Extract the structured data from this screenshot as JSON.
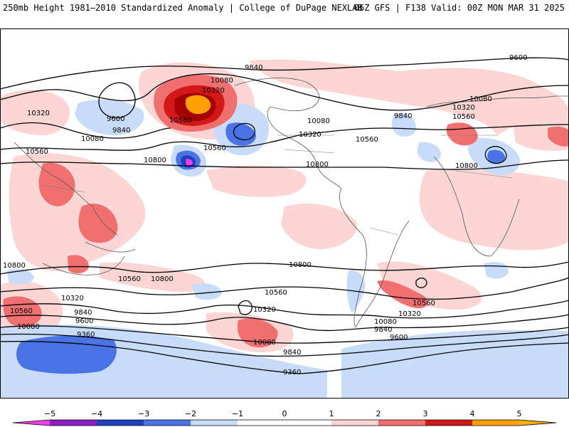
{
  "header": {
    "title_left": "250mb Height 1981–2010 Standardized Anomaly | College of DuPage NEXLAB",
    "title_right": "06Z GFS | F138 Valid: 00Z MON MAR 31 2025"
  },
  "colors": {
    "neg5": "#ee3ee6",
    "neg4": "#8a1fc4",
    "neg3": "#1e3fbf",
    "neg2": "#4a74e6",
    "neg1": "#c8dcfa",
    "pos1": "#fcd5d5",
    "pos2": "#f07070",
    "pos3": "#d41818",
    "pos4": "#a50000",
    "pos5": "#ff9f00"
  },
  "contour_labels": [
    {
      "text": "9840"
    },
    {
      "text": "9600"
    },
    {
      "text": "10080"
    },
    {
      "text": "10320"
    },
    {
      "text": "10320"
    },
    {
      "text": "9600"
    },
    {
      "text": "9840"
    },
    {
      "text": "10080"
    },
    {
      "text": "10560"
    },
    {
      "text": "10800"
    },
    {
      "text": "10560"
    },
    {
      "text": "10560"
    },
    {
      "text": "10320"
    },
    {
      "text": "10080"
    },
    {
      "text": "10560"
    },
    {
      "text": "9840"
    },
    {
      "text": "10080"
    },
    {
      "text": "10320"
    },
    {
      "text": "10560"
    },
    {
      "text": "10800"
    },
    {
      "text": "10800"
    },
    {
      "text": "10560"
    },
    {
      "text": "10800"
    },
    {
      "text": "10800"
    },
    {
      "text": "10320"
    },
    {
      "text": "10560"
    },
    {
      "text": "10080"
    },
    {
      "text": "9840"
    },
    {
      "text": "9600"
    },
    {
      "text": "9360"
    },
    {
      "text": "10560"
    },
    {
      "text": "10320"
    },
    {
      "text": "10800"
    },
    {
      "text": "10080"
    },
    {
      "text": "9840"
    },
    {
      "text": "9360"
    },
    {
      "text": "10560"
    },
    {
      "text": "10320"
    },
    {
      "text": "10080"
    },
    {
      "text": "9840"
    },
    {
      "text": "9600"
    }
  ],
  "colorbar": {
    "ticks": [
      "−5",
      "−4",
      "−3",
      "−2",
      "−1",
      "0",
      "1",
      "2",
      "3",
      "4",
      "5"
    ]
  }
}
